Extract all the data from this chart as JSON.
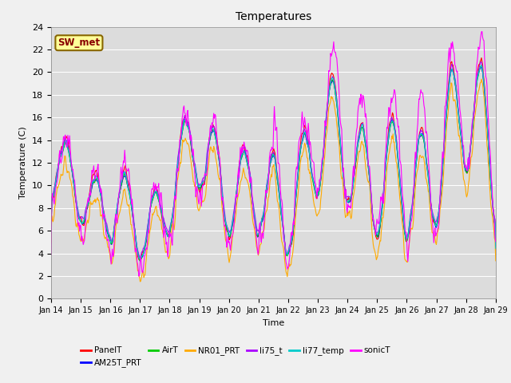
{
  "title": "Temperatures",
  "xlabel": "Time",
  "ylabel": "Temperature (C)",
  "ylim": [
    0,
    24
  ],
  "x_tick_labels": [
    "Jan 14",
    "Jan 15",
    "Jan 16",
    "Jan 17",
    "Jan 18",
    "Jan 19",
    "Jan 20",
    "Jan 21",
    "Jan 22",
    "Jan 23",
    "Jan 24",
    "Jan 25",
    "Jan 26",
    "Jan 27",
    "Jan 28",
    "Jan 29"
  ],
  "series_order": [
    "PanelT",
    "AM25T_PRT",
    "AirT",
    "NR01_PRT",
    "li75_t",
    "li77_temp",
    "sonicT"
  ],
  "series_colors": {
    "PanelT": "#ff0000",
    "AM25T_PRT": "#0000ff",
    "AirT": "#00cc00",
    "NR01_PRT": "#ffaa00",
    "li75_t": "#aa00ff",
    "li77_temp": "#00cccc",
    "sonicT": "#ff00ff"
  },
  "legend_label": "SW_met",
  "legend_box_facecolor": "#ffff99",
  "legend_box_edgecolor": "#886600",
  "legend_text_color": "#880000",
  "plot_bg_color": "#dcdcdc",
  "fig_bg_color": "#f0f0f0",
  "days": 15,
  "seed": 7
}
